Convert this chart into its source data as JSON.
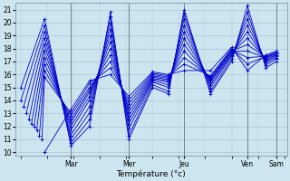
{
  "bg_color": "#cce5ee",
  "grid_color_major": "#aabbcc",
  "grid_color_minor": "#bbccdd",
  "line_color": "#0000cc",
  "xlabel": "Température (°c)",
  "ylim": [
    9.7,
    21.5
  ],
  "xlim": [
    -0.1,
    5.05
  ],
  "yticks": [
    10,
    11,
    12,
    13,
    14,
    15,
    16,
    17,
    18,
    19,
    20,
    21
  ],
  "day_labels": [
    "Mar",
    "Mer",
    "Jeu",
    "Ven",
    "Sam"
  ],
  "day_x": [
    0.95,
    2.05,
    3.1,
    4.3,
    4.85
  ],
  "vline_x": [
    0.95,
    2.05,
    3.1,
    4.3,
    4.85
  ],
  "series": [
    {
      "x": [
        0.0,
        0.45,
        0.95,
        1.3,
        1.7,
        2.05,
        2.5,
        2.8,
        3.1,
        3.6,
        4.0,
        4.3,
        4.65,
        4.85
      ],
      "y": [
        15.0,
        20.3,
        10.5,
        12.0,
        20.8,
        11.0,
        15.0,
        14.5,
        21.0,
        14.5,
        17.0,
        21.3,
        16.5,
        17.0
      ]
    },
    {
      "x": [
        0.0,
        0.45,
        0.95,
        1.3,
        1.7,
        2.05,
        2.5,
        2.8,
        3.1,
        3.6,
        4.0,
        4.3,
        4.65,
        4.85
      ],
      "y": [
        14.0,
        19.8,
        10.7,
        12.5,
        20.5,
        11.3,
        15.2,
        14.7,
        20.7,
        14.7,
        17.2,
        20.8,
        16.7,
        17.2
      ]
    },
    {
      "x": [
        0.05,
        0.45,
        0.95,
        1.3,
        1.7,
        2.05,
        2.5,
        2.8,
        3.1,
        3.6,
        4.0,
        4.3,
        4.65,
        4.85
      ],
      "y": [
        13.5,
        19.3,
        11.0,
        13.0,
        20.0,
        11.8,
        15.4,
        15.0,
        20.3,
        15.0,
        17.4,
        20.3,
        16.9,
        17.3
      ]
    },
    {
      "x": [
        0.1,
        0.45,
        0.95,
        1.3,
        1.7,
        2.05,
        2.5,
        2.8,
        3.1,
        3.6,
        4.0,
        4.3,
        4.65,
        4.85
      ],
      "y": [
        13.0,
        18.8,
        11.3,
        13.5,
        19.5,
        12.2,
        15.5,
        15.2,
        19.8,
        15.2,
        17.5,
        19.8,
        17.0,
        17.4
      ]
    },
    {
      "x": [
        0.15,
        0.45,
        0.95,
        1.3,
        1.7,
        2.05,
        2.5,
        2.8,
        3.1,
        3.6,
        4.0,
        4.3,
        4.65,
        4.85
      ],
      "y": [
        12.5,
        18.3,
        11.7,
        14.0,
        19.0,
        12.5,
        15.6,
        15.4,
        19.3,
        15.4,
        17.6,
        19.3,
        17.1,
        17.5
      ]
    },
    {
      "x": [
        0.2,
        0.45,
        0.95,
        1.3,
        1.7,
        2.05,
        2.5,
        2.8,
        3.1,
        3.6,
        4.0,
        4.3,
        4.65,
        4.85
      ],
      "y": [
        12.2,
        17.8,
        12.0,
        14.3,
        18.5,
        12.8,
        15.7,
        15.5,
        18.8,
        15.5,
        17.7,
        18.8,
        17.2,
        17.5
      ]
    },
    {
      "x": [
        0.25,
        0.45,
        0.95,
        1.3,
        1.7,
        2.05,
        2.5,
        2.8,
        3.1,
        3.6,
        4.0,
        4.3,
        4.65,
        4.85
      ],
      "y": [
        12.0,
        17.3,
        12.3,
        14.6,
        18.0,
        13.1,
        15.8,
        15.6,
        18.3,
        15.6,
        17.8,
        18.3,
        17.3,
        17.6
      ]
    },
    {
      "x": [
        0.3,
        0.45,
        0.95,
        1.3,
        1.7,
        2.05,
        2.5,
        2.8,
        3.1,
        3.6,
        4.0,
        4.3,
        4.65,
        4.85
      ],
      "y": [
        11.7,
        16.8,
        12.5,
        14.8,
        17.5,
        13.4,
        15.9,
        15.7,
        17.8,
        15.7,
        17.8,
        17.8,
        17.3,
        17.6
      ]
    },
    {
      "x": [
        0.35,
        0.45,
        0.95,
        1.3,
        1.7,
        2.05,
        2.5,
        2.8,
        3.1,
        3.6,
        4.0,
        4.3,
        4.65,
        4.85
      ],
      "y": [
        11.3,
        16.3,
        12.8,
        15.0,
        17.0,
        13.7,
        16.0,
        15.8,
        17.3,
        15.8,
        17.9,
        17.3,
        17.4,
        17.7
      ]
    },
    {
      "x": [
        0.4,
        0.45,
        0.95,
        1.3,
        1.7,
        2.05,
        2.5,
        2.8,
        3.1,
        3.6,
        4.0,
        4.3,
        4.65,
        4.85
      ],
      "y": [
        11.0,
        15.8,
        13.0,
        15.3,
        16.5,
        14.0,
        16.1,
        15.9,
        16.8,
        15.9,
        18.0,
        16.8,
        17.4,
        17.7
      ]
    },
    {
      "x": [
        0.45,
        0.95,
        1.3,
        1.7,
        2.05,
        2.5,
        2.8,
        3.1,
        3.6,
        4.0,
        4.3,
        4.65,
        4.85
      ],
      "y": [
        10.0,
        13.3,
        15.5,
        16.0,
        14.3,
        16.2,
        16.0,
        16.3,
        16.3,
        18.1,
        16.3,
        17.5,
        17.8
      ]
    }
  ]
}
